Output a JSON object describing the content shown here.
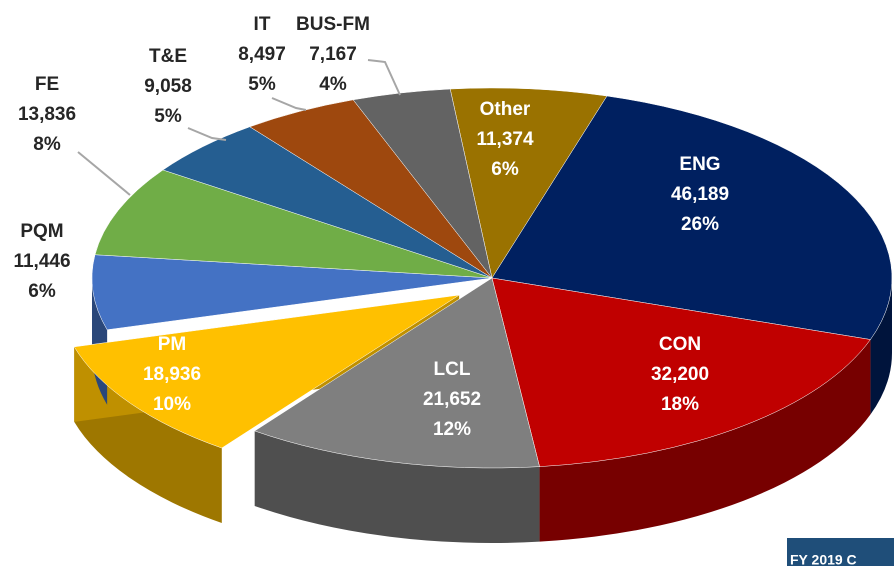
{
  "chart_data": {
    "type": "pie",
    "categories": [
      "Other",
      "ENG",
      "CON",
      "LCL",
      "PM",
      "PQM",
      "FE",
      "T&E",
      "IT",
      "BUS-FM"
    ],
    "values": [
      11374,
      46189,
      32200,
      21652,
      18936,
      11446,
      13836,
      9058,
      8497,
      7167
    ],
    "value_labels": [
      "11,374",
      "46,189",
      "32,200",
      "21,652",
      "18,936",
      "11,446",
      "13,836",
      "9,058",
      "8,497",
      "7,167"
    ],
    "percent_labels": [
      "6%",
      "26%",
      "18%",
      "12%",
      "10%",
      "6%",
      "8%",
      "5%",
      "5%",
      "4%"
    ],
    "colors": [
      "#9a7200",
      "#002060",
      "#c00000",
      "#7f7f7f",
      "#ffc000",
      "#4472c4",
      "#70ad47",
      "#255e91",
      "#9e480e",
      "#636363"
    ],
    "exploded": [
      "PM"
    ],
    "footer": "FY 2019 C"
  }
}
